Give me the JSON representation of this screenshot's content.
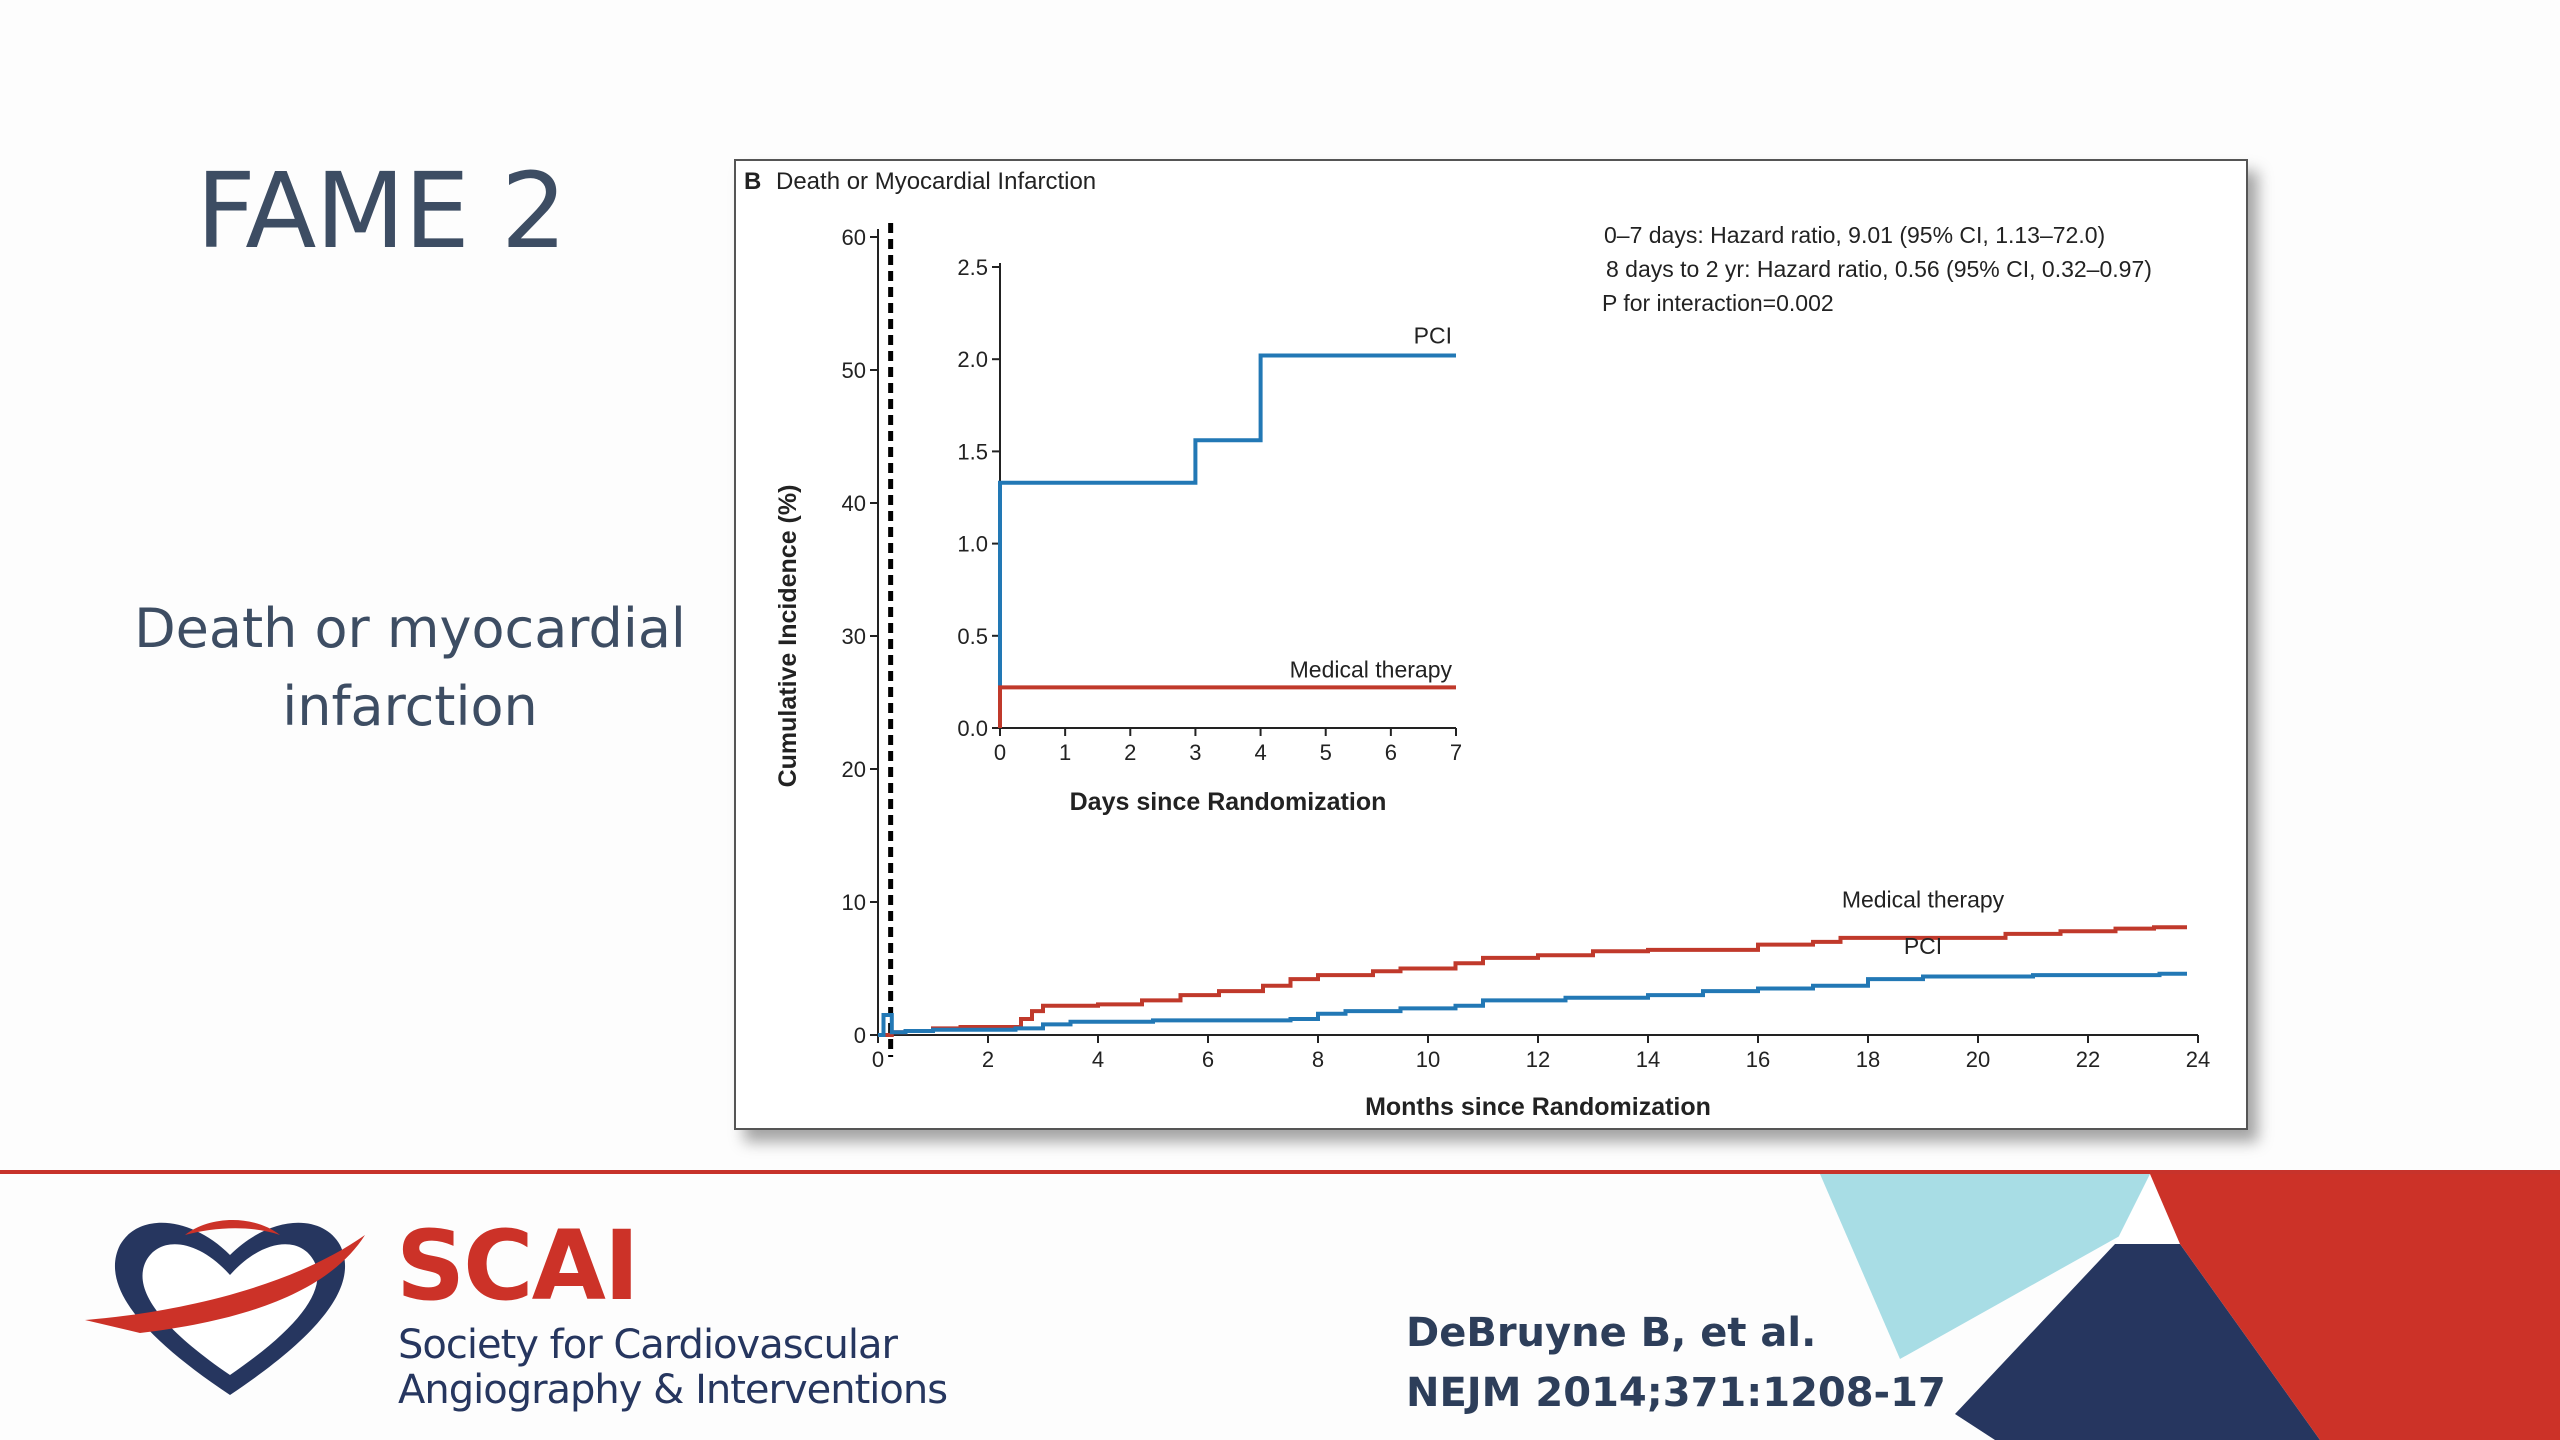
{
  "slide": {
    "title": "FAME 2",
    "subtitle": "Death or myocardial infarction"
  },
  "figure": {
    "panel_letter": "B",
    "panel_title": "Death or Myocardial Infarction",
    "stats": [
      "0–7 days: Hazard ratio, 9.01 (95% CI, 1.13–72.0)",
      "8 days to 2 yr: Hazard ratio, 0.56 (95% CI, 0.32–0.97)",
      "P for interaction=0.002"
    ]
  },
  "colors": {
    "pci": "#2278b5",
    "medical_therapy": "#c0392b",
    "title_text": "#3d4d63",
    "brand_red": "#cc3228",
    "brand_navy": "#26365f",
    "accent_light_blue": "#a8dde5"
  },
  "chart_data": [
    {
      "type": "line",
      "step": true,
      "title": "",
      "xlabel": "Months since Randomization",
      "ylabel": "Cumulative Incidence (%)",
      "xlim": [
        0,
        24
      ],
      "ylim": [
        0,
        60
      ],
      "xticks": [
        0,
        2,
        4,
        6,
        8,
        10,
        12,
        14,
        16,
        18,
        20,
        22,
        24
      ],
      "yticks": [
        0,
        10,
        20,
        30,
        40,
        50,
        60
      ],
      "reference_line_x": 0.23,
      "series": [
        {
          "name": "Medical therapy",
          "x": [
            0,
            0.25,
            0.5,
            1.0,
            1.5,
            2.4,
            2.6,
            2.8,
            3.0,
            4.0,
            4.8,
            5.5,
            6.2,
            7.0,
            7.5,
            8.0,
            9.0,
            9.5,
            10.5,
            11.0,
            12.0,
            13.0,
            14.0,
            16.0,
            17.0,
            17.5,
            19.0,
            20.5,
            21.5,
            22.5,
            23.2,
            23.8
          ],
          "y": [
            0,
            0.2,
            0.3,
            0.5,
            0.6,
            0.6,
            1.2,
            1.8,
            2.2,
            2.3,
            2.6,
            3.0,
            3.3,
            3.7,
            4.2,
            4.5,
            4.8,
            5.0,
            5.4,
            5.8,
            6.0,
            6.3,
            6.4,
            6.8,
            7.0,
            7.3,
            7.3,
            7.6,
            7.8,
            8.0,
            8.1,
            8.1
          ]
        },
        {
          "name": "PCI",
          "x": [
            0,
            0.1,
            0.25,
            0.5,
            1.0,
            2.5,
            3.0,
            3.5,
            5.0,
            7.5,
            8.0,
            8.5,
            9.5,
            10.5,
            11.0,
            12.5,
            14.0,
            15.0,
            16.0,
            17.0,
            18.0,
            19.0,
            21.0,
            22.5,
            23.3,
            23.8
          ],
          "y": [
            0,
            1.5,
            0.2,
            0.3,
            0.4,
            0.5,
            0.8,
            1.0,
            1.1,
            1.2,
            1.6,
            1.8,
            2.0,
            2.2,
            2.6,
            2.8,
            3.0,
            3.3,
            3.5,
            3.7,
            4.2,
            4.4,
            4.5,
            4.5,
            4.6,
            4.6
          ]
        }
      ]
    },
    {
      "type": "line",
      "step": true,
      "title": "",
      "xlabel": "Days since Randomization",
      "ylabel": "",
      "xlim": [
        0,
        7
      ],
      "ylim": [
        0,
        2.5
      ],
      "xticks": [
        0,
        1,
        2,
        3,
        4,
        5,
        6,
        7
      ],
      "yticks": [
        "0.0",
        "0.5",
        "1.0",
        "1.5",
        "2.0",
        "2.5"
      ],
      "series": [
        {
          "name": "PCI",
          "x": [
            0,
            3,
            4,
            7
          ],
          "y": [
            1.33,
            1.56,
            2.02,
            2.02
          ]
        },
        {
          "name": "Medical therapy",
          "x": [
            0,
            7
          ],
          "y": [
            0.22,
            0.22
          ]
        }
      ]
    }
  ],
  "footer": {
    "org_short": "SCAI",
    "org_line1": "Society for Cardiovascular",
    "org_line2": "Angiography & Interventions",
    "citation_line1": "DeBruyne B, et al.",
    "citation_line2": "NEJM 2014;371:1208-17",
    "logo_icon": "heart-ribbon-icon"
  }
}
